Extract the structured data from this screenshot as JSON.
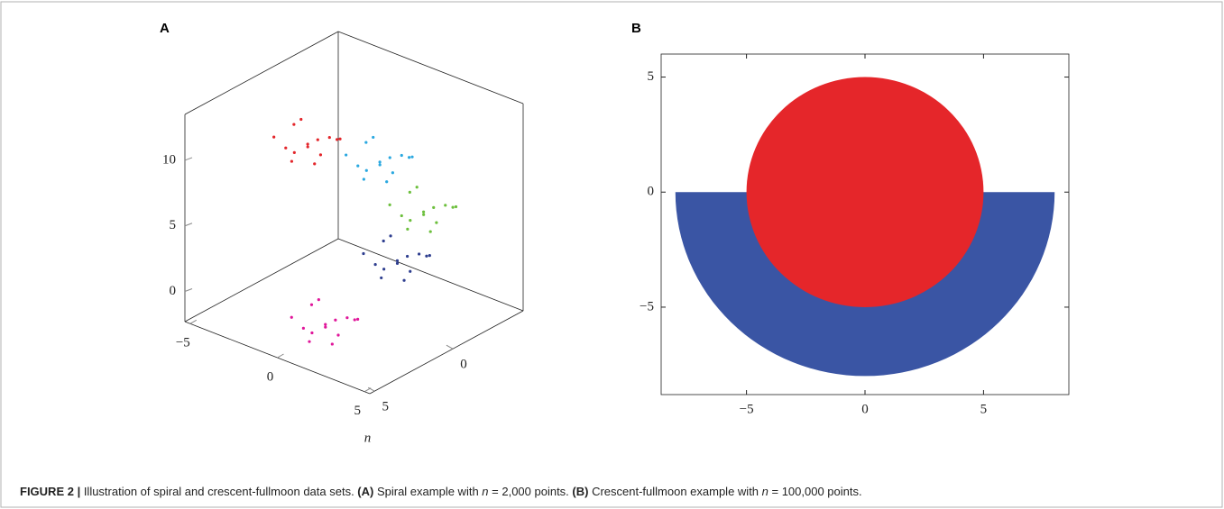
{
  "figure": {
    "caption": [
      "FIGURE 2 |",
      " Illustration of spiral and crescent-fullmoon data sets. ",
      "(A)",
      " Spiral example with ",
      "n",
      " = 2,000 points. ",
      "(B)",
      " Crescent-fullmoon example with ",
      "n",
      " = 100,000 points."
    ]
  },
  "chart_data": [
    {
      "type": "scatter3d",
      "panel": "A",
      "xlabel": "n",
      "xlim": [
        -5.3,
        5.3
      ],
      "ylim": [
        -4.5,
        5.3
      ],
      "zlim": [
        -2.3,
        13.5
      ],
      "xticks": [
        {
          "value": -5,
          "label": "−5"
        },
        0,
        5
      ],
      "yticks": [
        0,
        5
      ],
      "zticks": [
        0,
        5,
        10
      ],
      "series": [
        {
          "color": "#e0169a",
          "x": [
            0.6,
            1.4,
            -0.3,
            1.8,
            -0.5,
            1.0,
            0.1,
            2.1,
            -0.8,
            0.8,
            1.5,
            -0.1,
            1.2,
            0.4
          ],
          "y": [
            2.9,
            2.4,
            3.3,
            3.8,
            2.1,
            4.2,
            1.7,
            2.7,
            3.5,
            2.3,
            3.9,
            3.0,
            1.5,
            3.7
          ],
          "z": [
            -1.0,
            -0.4,
            -1.5,
            -1.3,
            -0.2,
            -0.6,
            -1.7,
            0.0,
            -0.8,
            -2.1,
            -0.1,
            0.2,
            -1.2,
            -1.9
          ]
        },
        {
          "color": "#2e3e8f",
          "x": [
            2.3,
            3.1,
            1.4,
            3.5,
            1.2,
            2.7,
            1.8,
            3.8,
            0.9,
            2.5,
            3.2,
            1.6,
            2.9,
            2.1
          ],
          "y": [
            0.2,
            -0.3,
            0.6,
            1.1,
            -0.6,
            1.5,
            -1.0,
            0.0,
            0.8,
            -0.4,
            1.2,
            0.3,
            -1.2,
            1.0
          ],
          "z": [
            3.0,
            3.6,
            2.5,
            2.7,
            3.8,
            3.4,
            2.3,
            4.0,
            3.2,
            1.9,
            3.9,
            4.2,
            2.8,
            2.1
          ]
        },
        {
          "color": "#6cbf3c",
          "x": [
            3.0,
            3.8,
            2.1,
            4.2,
            1.9,
            3.4,
            2.5,
            4.5,
            1.6,
            3.2,
            3.9,
            2.3,
            3.6,
            2.8
          ],
          "y": [
            -0.7,
            -1.2,
            -0.3,
            0.2,
            -1.5,
            0.6,
            -1.9,
            -0.9,
            -0.1,
            -1.3,
            0.3,
            -0.6,
            -2.1,
            0.1
          ],
          "z": [
            6.5,
            7.1,
            6.0,
            6.2,
            7.3,
            6.9,
            5.8,
            7.5,
            6.7,
            5.4,
            7.4,
            7.7,
            6.3,
            5.6
          ]
        },
        {
          "color": "#2aa8e0",
          "x": [
            1.3,
            2.1,
            0.4,
            2.5,
            0.2,
            1.7,
            0.8,
            2.8,
            -0.1,
            1.5,
            2.2,
            0.6,
            1.9,
            1.1
          ],
          "y": [
            0.2,
            -0.3,
            0.6,
            1.1,
            -0.6,
            1.5,
            -1.0,
            0.0,
            0.8,
            -0.4,
            1.2,
            0.3,
            -1.2,
            1.0
          ],
          "z": [
            10.0,
            10.6,
            9.5,
            9.7,
            10.8,
            10.4,
            9.3,
            11.0,
            10.2,
            8.9,
            10.9,
            11.2,
            9.8,
            9.1
          ]
        },
        {
          "color": "#e3262b",
          "x": [
            -1.4,
            -0.6,
            -2.3,
            -0.2,
            -2.5,
            -1.0,
            -1.9,
            0.1,
            -2.8,
            -1.2,
            -0.5,
            -2.1,
            -0.8,
            -1.6
          ],
          "y": [
            1.8,
            1.3,
            2.2,
            2.7,
            1.0,
            3.1,
            0.6,
            1.6,
            2.4,
            1.2,
            2.8,
            1.9,
            0.4,
            2.6
          ],
          "z": [
            11.0,
            11.6,
            10.5,
            10.7,
            11.8,
            11.4,
            10.3,
            12.0,
            11.2,
            9.9,
            11.9,
            12.2,
            10.8,
            10.1
          ]
        }
      ]
    },
    {
      "type": "scatter",
      "panel": "B",
      "xlim": [
        -8.6,
        8.6
      ],
      "ylim": [
        -8.8,
        6
      ],
      "xticks": [
        {
          "value": -5,
          "label": "−5"
        },
        0,
        5
      ],
      "yticks": [
        {
          "value": -5,
          "label": "−5"
        },
        0,
        5
      ],
      "series": [
        {
          "color": "#3a55a4",
          "shape": "half-disc",
          "center": [
            0,
            0
          ],
          "radius": 8
        },
        {
          "color": "#e5262a",
          "shape": "disc",
          "center": [
            0,
            0
          ],
          "radius": 5
        }
      ]
    }
  ]
}
